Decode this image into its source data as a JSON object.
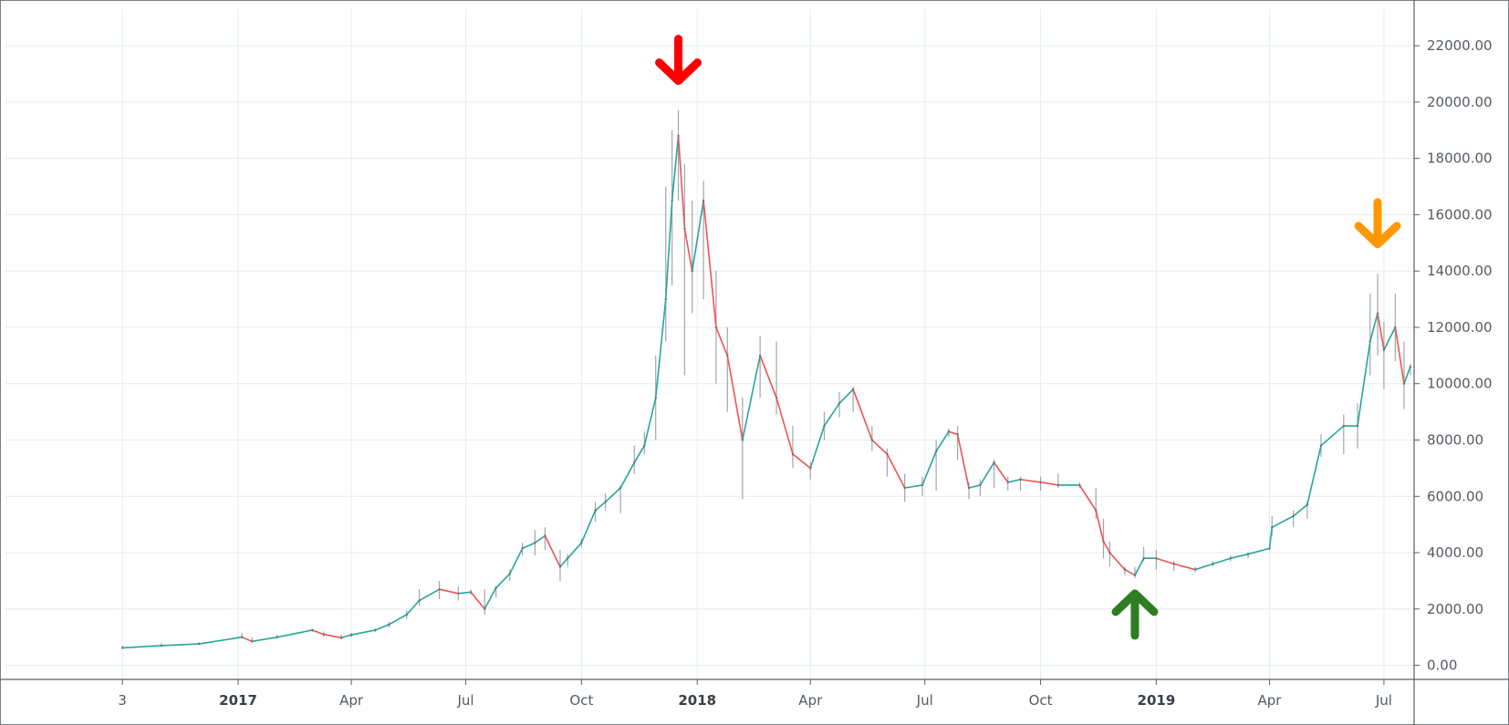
{
  "chart_data": {
    "type": "line",
    "title": "",
    "xlabel": "",
    "ylabel": "",
    "x_axis_type": "time",
    "xlim": [
      "2016-06-30",
      "2019-07-25"
    ],
    "ylim": [
      -500,
      23300
    ],
    "grid": true,
    "y_ticks": [
      {
        "value": 0,
        "label": "0.00"
      },
      {
        "value": 2000,
        "label": "2000.00"
      },
      {
        "value": 4000,
        "label": "4000.00"
      },
      {
        "value": 6000,
        "label": "6000.00"
      },
      {
        "value": 8000,
        "label": "8000.00"
      },
      {
        "value": 10000,
        "label": "10000.00"
      },
      {
        "value": 12000,
        "label": "12000.00"
      },
      {
        "value": 14000,
        "label": "14000.00"
      },
      {
        "value": 16000,
        "label": "16000.00"
      },
      {
        "value": 18000,
        "label": "18000.00"
      },
      {
        "value": 20000,
        "label": "20000.00"
      },
      {
        "value": 22000,
        "label": "22000.00"
      }
    ],
    "x_ticks": [
      {
        "date": "2016-10-01",
        "label": "3",
        "major": false
      },
      {
        "date": "2017-01-01",
        "label": "2017",
        "major": true
      },
      {
        "date": "2017-04-01",
        "label": "Apr",
        "major": false
      },
      {
        "date": "2017-07-01",
        "label": "Jul",
        "major": false
      },
      {
        "date": "2017-10-01",
        "label": "Oct",
        "major": false
      },
      {
        "date": "2018-01-01",
        "label": "2018",
        "major": true
      },
      {
        "date": "2018-04-01",
        "label": "Apr",
        "major": false
      },
      {
        "date": "2018-07-01",
        "label": "Jul",
        "major": false
      },
      {
        "date": "2018-10-01",
        "label": "Oct",
        "major": false
      },
      {
        "date": "2019-01-01",
        "label": "2019",
        "major": true
      },
      {
        "date": "2019-04-01",
        "label": "Apr",
        "major": false
      },
      {
        "date": "2019-07-01",
        "label": "Jul",
        "major": false
      }
    ],
    "series": [
      {
        "color_up": "#26a69a",
        "color_down": "#ef5350",
        "x": [
          "2016-10-01",
          "2016-11-01",
          "2016-12-01",
          "2017-01-04",
          "2017-01-12",
          "2017-02-01",
          "2017-03-01",
          "2017-03-10",
          "2017-03-24",
          "2017-04-01",
          "2017-04-20",
          "2017-05-01",
          "2017-05-15",
          "2017-05-25",
          "2017-06-10",
          "2017-06-25",
          "2017-07-05",
          "2017-07-16",
          "2017-07-25",
          "2017-08-05",
          "2017-08-15",
          "2017-08-25",
          "2017-09-02",
          "2017-09-14",
          "2017-09-20",
          "2017-10-01",
          "2017-10-12",
          "2017-10-20",
          "2017-11-01",
          "2017-11-12",
          "2017-11-20",
          "2017-11-29",
          "2017-12-07",
          "2017-12-12",
          "2017-12-17",
          "2017-12-22",
          "2017-12-28",
          "2018-01-06",
          "2018-01-16",
          "2018-01-25",
          "2018-02-06",
          "2018-02-20",
          "2018-03-05",
          "2018-03-18",
          "2018-04-01",
          "2018-04-12",
          "2018-04-24",
          "2018-05-05",
          "2018-05-20",
          "2018-06-01",
          "2018-06-15",
          "2018-06-29",
          "2018-07-10",
          "2018-07-20",
          "2018-07-27",
          "2018-08-05",
          "2018-08-14",
          "2018-08-25",
          "2018-09-05",
          "2018-09-15",
          "2018-10-01",
          "2018-10-15",
          "2018-11-01",
          "2018-11-14",
          "2018-11-20",
          "2018-11-25",
          "2018-12-07",
          "2018-12-15",
          "2018-12-22",
          "2019-01-01",
          "2019-01-15",
          "2019-02-01",
          "2019-02-15",
          "2019-03-01",
          "2019-03-15",
          "2019-04-01",
          "2019-04-03",
          "2019-04-20",
          "2019-05-01",
          "2019-05-12",
          "2019-05-30",
          "2019-06-10",
          "2019-06-20",
          "2019-06-26",
          "2019-07-01",
          "2019-07-10",
          "2019-07-17",
          "2019-07-22"
        ],
        "values": [
          620,
          700,
          760,
          1000,
          850,
          1000,
          1250,
          1100,
          980,
          1080,
          1250,
          1450,
          1800,
          2300,
          2700,
          2550,
          2600,
          2000,
          2750,
          3250,
          4150,
          4350,
          4600,
          3500,
          3800,
          4350,
          5500,
          5800,
          6300,
          7200,
          7800,
          9500,
          13000,
          16500,
          18800,
          15500,
          14000,
          16500,
          12000,
          11000,
          8000,
          11000,
          9500,
          7500,
          7000,
          8500,
          9300,
          9800,
          8000,
          7500,
          6300,
          6400,
          7600,
          8300,
          8200,
          6300,
          6400,
          7200,
          6500,
          6600,
          6500,
          6400,
          6400,
          5500,
          4400,
          4000,
          3400,
          3200,
          3800,
          3800,
          3600,
          3400,
          3600,
          3800,
          3950,
          4150,
          4900,
          5300,
          5700,
          7800,
          8500,
          8500,
          11500,
          12500,
          11200,
          12000,
          10000,
          10600
        ],
        "high": [
          700,
          780,
          820,
          1150,
          1000,
          1080,
          1300,
          1200,
          1100,
          1150,
          1300,
          1550,
          1950,
          2700,
          3000,
          2800,
          2700,
          2700,
          2800,
          3400,
          4350,
          4800,
          4900,
          4100,
          3950,
          4500,
          5800,
          6100,
          6400,
          7800,
          8300,
          11000,
          17000,
          19000,
          19700,
          17800,
          16500,
          17200,
          14000,
          12000,
          9500,
          11700,
          11500,
          8500,
          7200,
          9000,
          9700,
          9900,
          8500,
          7700,
          6800,
          6700,
          8000,
          8400,
          8500,
          6500,
          6600,
          7300,
          6700,
          6700,
          6700,
          6800,
          6500,
          6300,
          5200,
          4400,
          3500,
          3500,
          4200,
          4100,
          3700,
          3500,
          3700,
          3900,
          4000,
          4200,
          5300,
          5500,
          5800,
          8200,
          8900,
          9300,
          13200,
          13900,
          12200,
          13200,
          11500,
          10700
        ],
        "low": [
          580,
          660,
          730,
          950,
          780,
          950,
          1180,
          1000,
          920,
          1000,
          1180,
          1350,
          1650,
          2100,
          2350,
          2300,
          2500,
          1800,
          2400,
          3000,
          3900,
          3900,
          4100,
          2980,
          3500,
          4200,
          5100,
          5500,
          5400,
          6800,
          7500,
          8000,
          11500,
          13500,
          16500,
          10300,
          12500,
          13000,
          10000,
          9000,
          5900,
          9500,
          8900,
          7000,
          6600,
          8000,
          8800,
          9000,
          7600,
          6700,
          5800,
          6000,
          6200,
          8100,
          7300,
          5900,
          6000,
          6300,
          6200,
          6200,
          6200,
          6300,
          6300,
          5200,
          3800,
          3500,
          3200,
          3100,
          3700,
          3400,
          3350,
          3300,
          3500,
          3700,
          3800,
          4100,
          4600,
          4900,
          5200,
          7400,
          7500,
          7700,
          10300,
          11000,
          9800,
          10800,
          9100,
          10300
        ]
      }
    ],
    "annotations": [
      {
        "type": "arrow-down",
        "x": "2017-12-17",
        "y": 21400,
        "color": "#ff0000"
      },
      {
        "type": "arrow-up",
        "x": "2018-12-15",
        "y": 1900,
        "color": "#2e7d22"
      },
      {
        "type": "arrow-down",
        "x": "2019-06-26",
        "y": 15600,
        "color": "#ff9800"
      }
    ],
    "colors": {
      "grid": "#e3ecf5",
      "border": "#5a5e66",
      "arrow_red": "#ff0000",
      "arrow_green": "#2e7d22",
      "arrow_orange": "#ff9800"
    }
  }
}
